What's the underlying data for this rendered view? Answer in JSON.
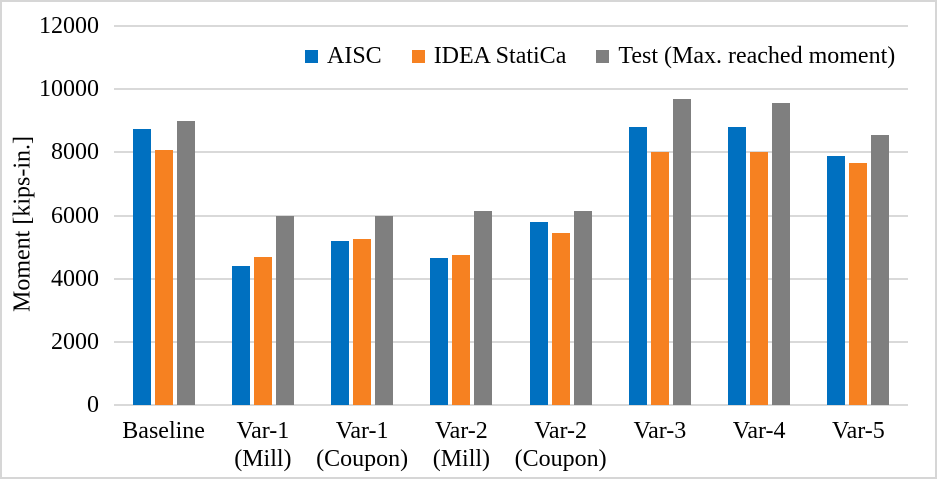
{
  "chart_data": {
    "type": "bar",
    "title": "",
    "xlabel": "",
    "ylabel": "Moment [kips-in.]",
    "ylim": [
      0,
      12000
    ],
    "yticks": [
      0,
      2000,
      4000,
      6000,
      8000,
      10000,
      12000
    ],
    "ytick_labels": [
      "0",
      "2000",
      "4000",
      "6000",
      "8000",
      "10000",
      "12000"
    ],
    "grid": true,
    "gridline_color": "#d9d9d9",
    "legend_position": "top",
    "categories": [
      "Baseline",
      "Var-1 (Mill)",
      "Var-1 (Coupon)",
      "Var-2 (Mill)",
      "Var-2 (Coupon)",
      "Var-3",
      "Var-4",
      "Var-5"
    ],
    "category_display": [
      "Baseline",
      "Var-1\n(Mill)",
      "Var-1\n(Coupon)",
      "Var-2\n(Mill)",
      "Var-2\n(Coupon)",
      "Var-3",
      "Var-4",
      "Var-5"
    ],
    "series": [
      {
        "name": "AISC",
        "color": "#0070C0",
        "values": [
          8750,
          4400,
          5200,
          4650,
          5800,
          8800,
          8800,
          7900
        ]
      },
      {
        "name": "IDEA StatiCa",
        "color": "#F68121",
        "values": [
          8080,
          4700,
          5250,
          4750,
          5450,
          8000,
          8000,
          7650
        ]
      },
      {
        "name": "Test (Max. reached moment)",
        "color": "#7F7F7F",
        "values": [
          9000,
          6000,
          6000,
          6150,
          6150,
          9700,
          9550,
          8550
        ]
      }
    ]
  }
}
